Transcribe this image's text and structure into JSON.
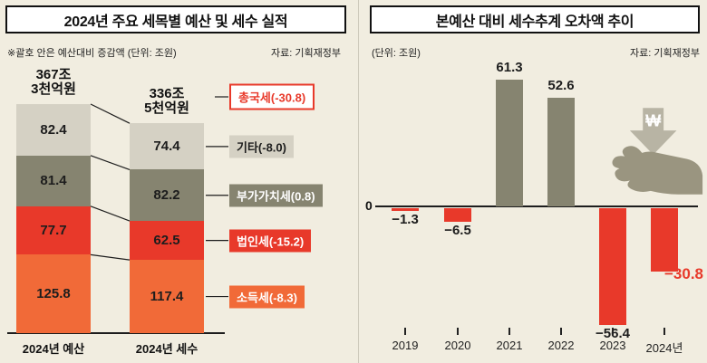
{
  "page": {
    "background": "#f1ede0"
  },
  "left_chart": {
    "title": "2024년 주요 세목별 예산 및 세수 실적",
    "note": "※괄호 안은 예산대비 증감액 (단위: 조원)",
    "source": "자료: 기획재정부"
  },
  "right_chart": {
    "title": "본예산 대비 세수추계 오차액 추이",
    "unit": "(단위: 조원)",
    "source": "자료: 기획재정부",
    "zero_label": "0",
    "won_symbol": "₩"
  },
  "colors": {
    "income_tax_orange": "#f16a38",
    "corporate_tax_red": "#e8392a",
    "vat_olive": "#868470",
    "etc_gray": "#d5d1c4",
    "accent_red": "#e8392a",
    "background": "#f1ede0"
  },
  "chart_data": [
    {
      "type": "bar",
      "subtype": "stacked",
      "title": "2024년 주요 세목별 예산 및 세수 실적",
      "unit": "조원",
      "categories": [
        "2024년 예산",
        "2024년 세수"
      ],
      "totals": [
        367.3,
        336.5
      ],
      "total_labels": [
        [
          "367조",
          "3천억원"
        ],
        [
          "336조",
          "5천억원"
        ]
      ],
      "series": [
        {
          "name": "기타",
          "color": "#d5d1c4",
          "values": [
            82.4,
            74.4
          ]
        },
        {
          "name": "부가가치세",
          "color": "#868470",
          "values": [
            81.4,
            82.2
          ]
        },
        {
          "name": "법인세",
          "color": "#e8392a",
          "values": [
            77.7,
            62.5
          ]
        },
        {
          "name": "소득세",
          "color": "#f16a38",
          "values": [
            125.8,
            117.4
          ]
        }
      ],
      "annotations": [
        {
          "label": "총국세(-30.8)",
          "style": "outline",
          "target": "total"
        },
        {
          "label": "기타(-8.0)",
          "style": "gray",
          "target": 0
        },
        {
          "label": "부가가치세(0.8)",
          "style": "olive",
          "target": 1
        },
        {
          "label": "법인세(-15.2)",
          "style": "red",
          "target": 2
        },
        {
          "label": "소득세(-8.3)",
          "style": "orange",
          "target": 3
        }
      ],
      "legend_position": "right",
      "grid": false
    },
    {
      "type": "bar",
      "title": "본예산 대비 세수추계 오차액 추이",
      "unit": "조원",
      "categories": [
        "2019",
        "2020",
        "2021",
        "2022",
        "2023",
        "2024년"
      ],
      "values": [
        -1.3,
        -6.5,
        61.3,
        52.6,
        -56.4,
        -30.8
      ],
      "value_labels": [
        "−1.3",
        "−6.5",
        "61.3",
        "52.6",
        "−56.4",
        "−30.8"
      ],
      "highlight_index": 5,
      "positive_color": "#868470",
      "negative_color": "#e8392a",
      "highlight_color": "#e8392a",
      "ylim": [
        -60,
        65
      ],
      "grid": false,
      "legend": false
    }
  ]
}
